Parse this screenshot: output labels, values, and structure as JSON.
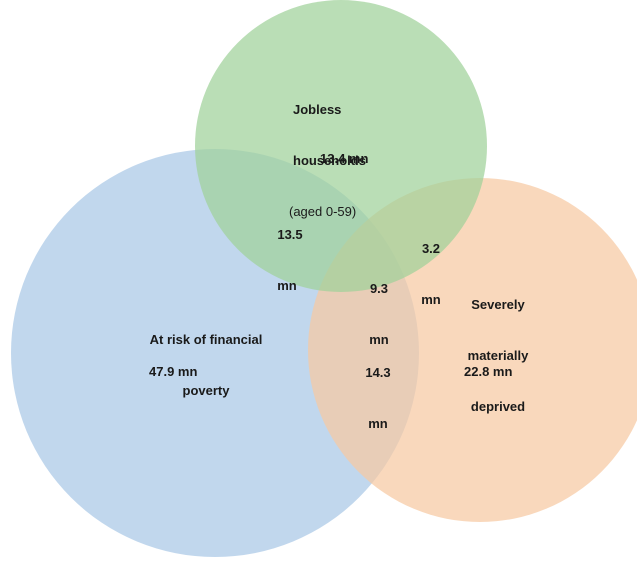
{
  "sets": [
    {
      "id": "jobless",
      "label_lines": [
        "Jobless",
        "households"
      ],
      "label_sub": "(aged 0-59)",
      "only_value": "13.4 mn",
      "color": "#9fd19a"
    },
    {
      "id": "financial",
      "label_lines": [
        "At risk of financial",
        "poverty"
      ],
      "only_value": "47.9 mn",
      "color": "#a9c8e6"
    },
    {
      "id": "deprived",
      "label_lines": [
        "Severely",
        "materially",
        "deprived"
      ],
      "only_value": "22.8 mn",
      "color": "#f7c9a2"
    }
  ],
  "intersections": {
    "jobless_financial": [
      "13.5",
      "mn"
    ],
    "jobless_deprived": [
      "3.2",
      "mn"
    ],
    "financial_deprived": [
      "14.3",
      "mn"
    ],
    "all_three": [
      "9.3",
      "mn"
    ]
  }
}
